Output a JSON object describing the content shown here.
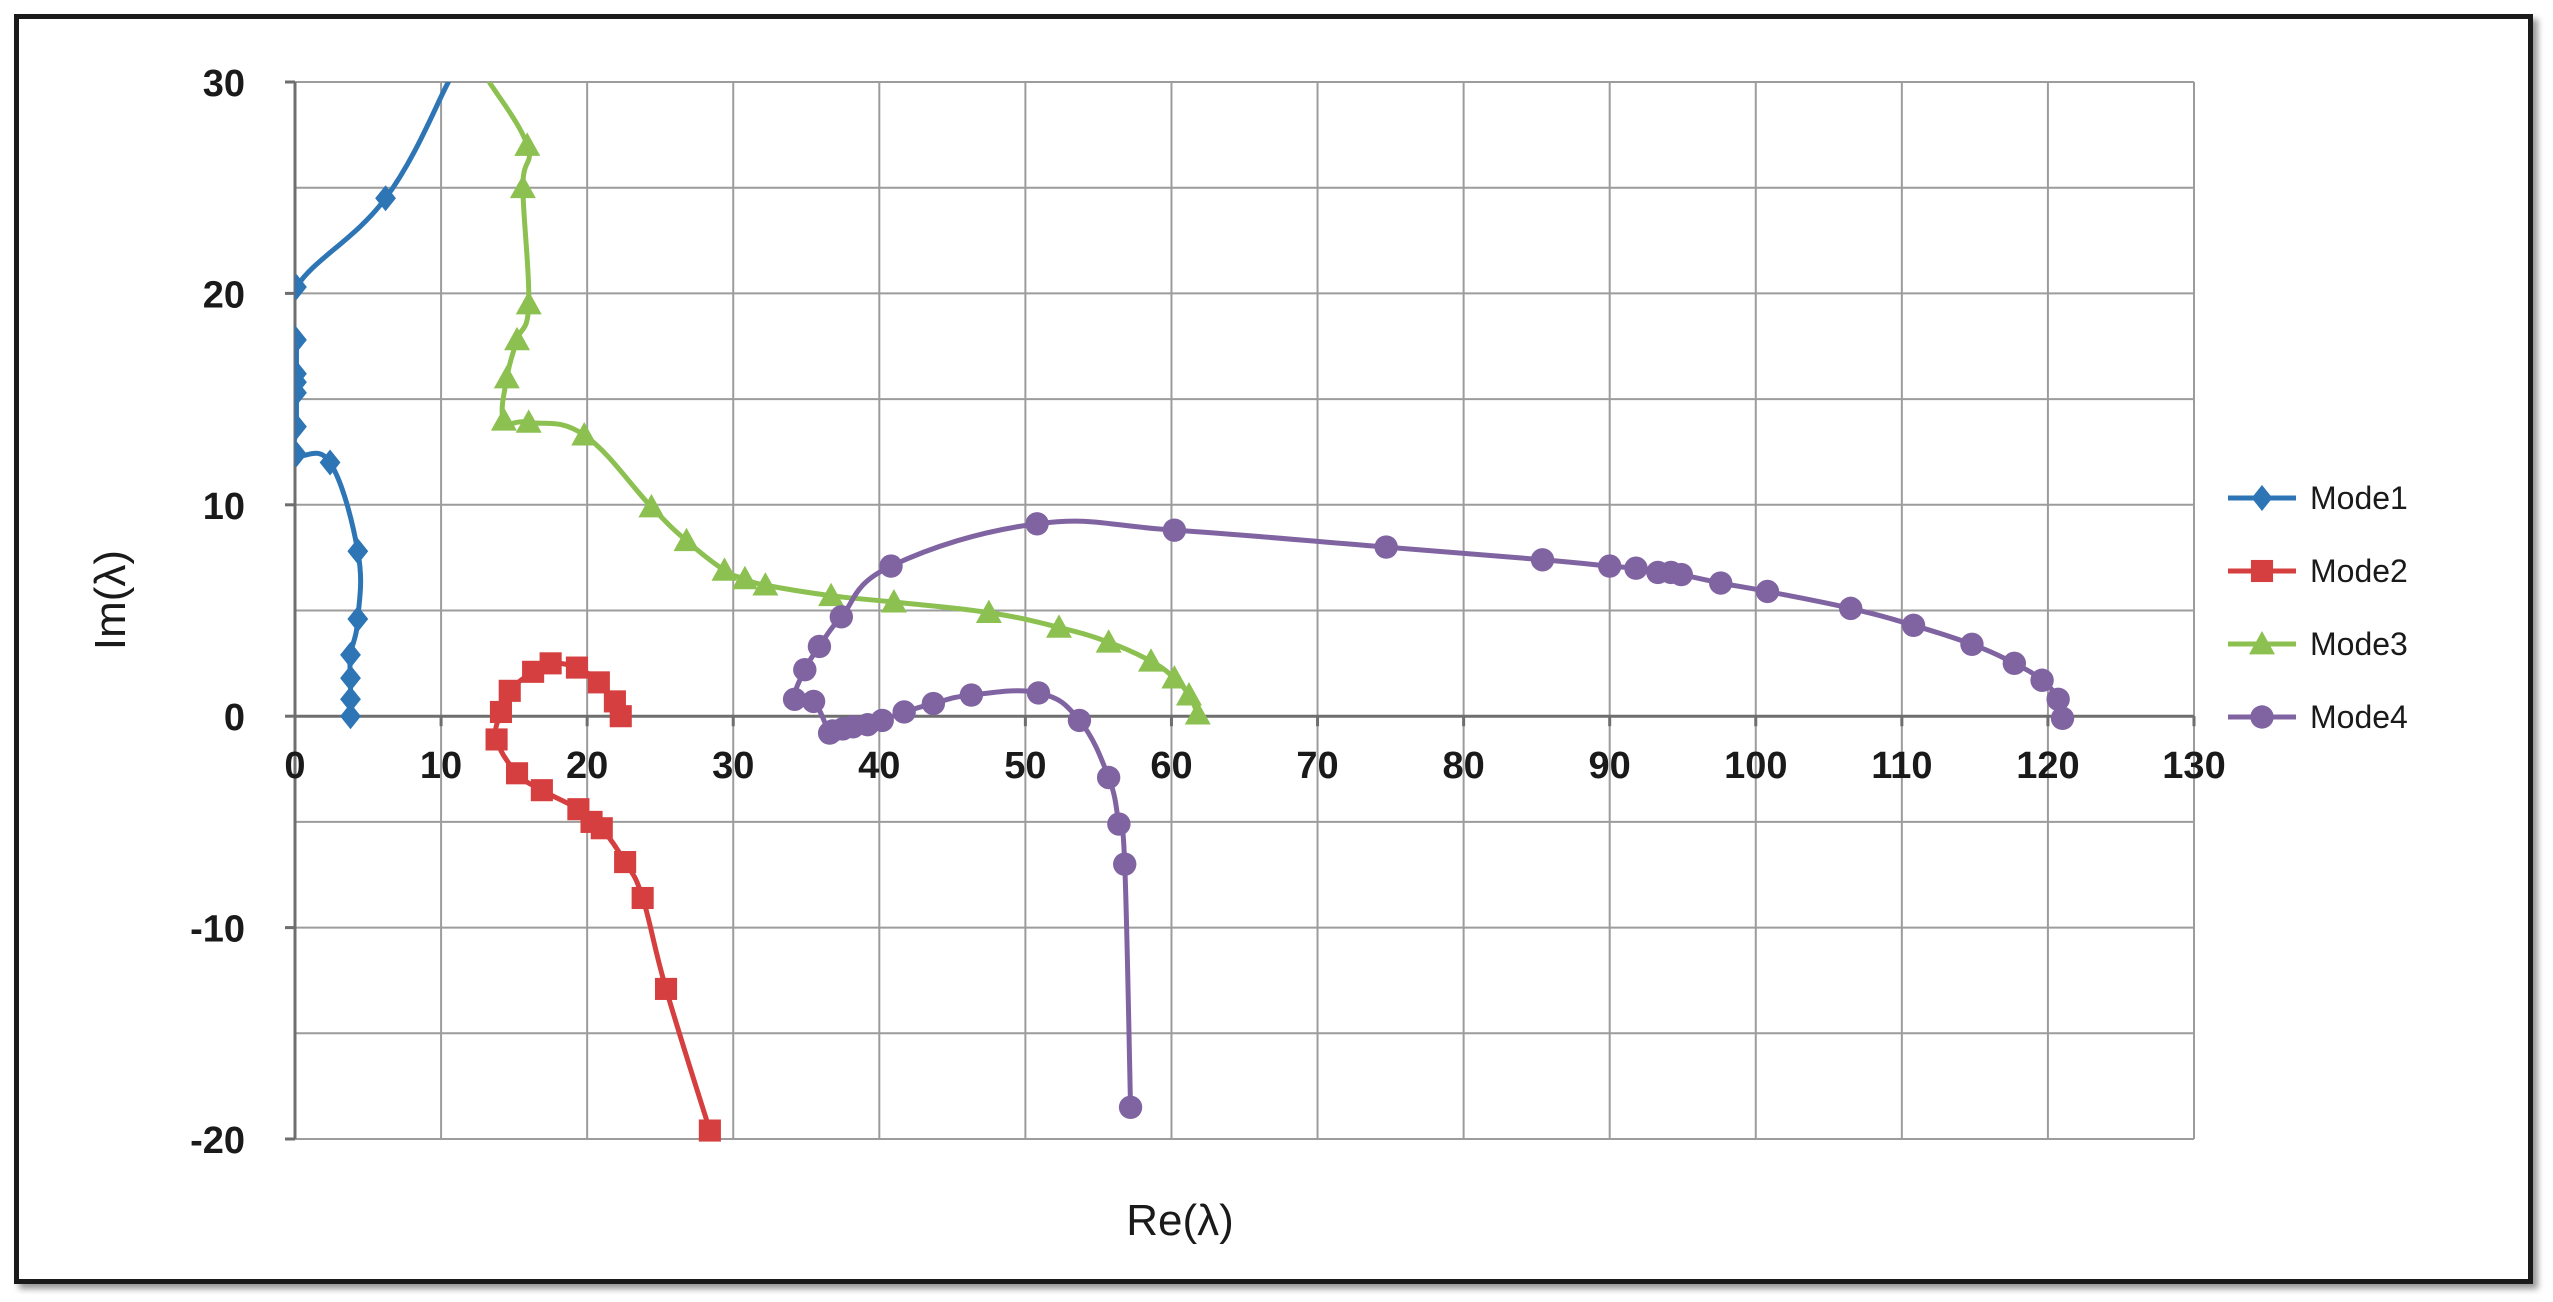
{
  "chart_data": {
    "type": "scatter",
    "xlabel": "Re(λ)",
    "ylabel": "Im(λ)",
    "xlim": [
      0,
      130
    ],
    "ylim": [
      -20,
      30
    ],
    "x_ticks": [
      "0",
      "10",
      "20",
      "30",
      "40",
      "50",
      "60",
      "70",
      "80",
      "90",
      "100",
      "110",
      "120",
      "130"
    ],
    "y_ticks": [
      "-20",
      "-10",
      "0",
      "10",
      "20",
      "30"
    ],
    "grid": true,
    "legend_position": "right",
    "series": [
      {
        "name": "Mode1",
        "color": "#2e75b6",
        "marker": "diamond",
        "points": [
          [
            10.5,
            30
          ],
          [
            6.2,
            24.5
          ],
          [
            0.1,
            20.3
          ],
          [
            0.1,
            17.8
          ],
          [
            0.1,
            16.2
          ],
          [
            0.1,
            15.8
          ],
          [
            0.1,
            15.3
          ],
          [
            0.1,
            13.7
          ],
          [
            0.1,
            12.4
          ],
          [
            2.4,
            12
          ],
          [
            4.3,
            7.8
          ],
          [
            4.3,
            4.6
          ],
          [
            3.8,
            2.9
          ],
          [
            3.8,
            1.8
          ],
          [
            3.8,
            0.8
          ],
          [
            3.8,
            0
          ]
        ]
      },
      {
        "name": "Mode2",
        "color": "#d63f3f",
        "marker": "square",
        "points": [
          [
            22.3,
            0
          ],
          [
            21.9,
            0.7
          ],
          [
            20.8,
            1.6
          ],
          [
            19.3,
            2.3
          ],
          [
            17.5,
            2.5
          ],
          [
            16.3,
            2.1
          ],
          [
            14.7,
            1.2
          ],
          [
            14.1,
            0.2
          ],
          [
            13.8,
            -1.1
          ],
          [
            15.2,
            -2.7
          ],
          [
            16.9,
            -3.5
          ],
          [
            19.4,
            -4.4
          ],
          [
            20.3,
            -5
          ],
          [
            21,
            -5.3
          ],
          [
            22.6,
            -6.9
          ],
          [
            23.8,
            -8.6
          ],
          [
            25.4,
            -12.9
          ],
          [
            28.4,
            -19.6
          ]
        ]
      },
      {
        "name": "Mode3",
        "color": "#8cc152",
        "marker": "triangle",
        "points": [
          [
            13.3,
            30
          ],
          [
            15.9,
            27
          ],
          [
            15.6,
            25
          ],
          [
            16,
            19.5
          ],
          [
            15.2,
            17.8
          ],
          [
            14.5,
            16
          ],
          [
            14.3,
            14
          ],
          [
            16,
            13.9
          ],
          [
            19.8,
            13.3
          ],
          [
            24.4,
            9.9
          ],
          [
            26.8,
            8.3
          ],
          [
            29.4,
            6.9
          ],
          [
            30.8,
            6.5
          ],
          [
            32.2,
            6.2
          ],
          [
            36.7,
            5.7
          ],
          [
            41,
            5.4
          ],
          [
            47.5,
            4.9
          ],
          [
            52.3,
            4.2
          ],
          [
            55.7,
            3.5
          ],
          [
            58.6,
            2.6
          ],
          [
            60.2,
            1.8
          ],
          [
            61.2,
            1
          ],
          [
            61.8,
            0.1
          ]
        ]
      },
      {
        "name": "Mode4",
        "color": "#8064a2",
        "marker": "circle",
        "points": [
          [
            57.2,
            -18.5
          ],
          [
            56.8,
            -7
          ],
          [
            56.4,
            -5.1
          ],
          [
            55.7,
            -2.9
          ],
          [
            53.7,
            -0.2
          ],
          [
            50.9,
            1.1
          ],
          [
            46.3,
            1
          ],
          [
            43.7,
            0.6
          ],
          [
            41.7,
            0.2
          ],
          [
            40.2,
            -0.2
          ],
          [
            39.2,
            -0.4
          ],
          [
            38.2,
            -0.5
          ],
          [
            37.5,
            -0.6
          ],
          [
            36.8,
            -0.7
          ],
          [
            36.6,
            -0.8
          ],
          [
            35.5,
            0.7
          ],
          [
            34.2,
            0.8
          ],
          [
            34.9,
            2.2
          ],
          [
            35.9,
            3.3
          ],
          [
            37.4,
            4.7
          ],
          [
            40.8,
            7.1
          ],
          [
            50.8,
            9.1
          ],
          [
            60.2,
            8.8
          ],
          [
            74.7,
            8
          ],
          [
            85.4,
            7.4
          ],
          [
            90,
            7.1
          ],
          [
            91.8,
            7
          ],
          [
            93.3,
            6.8
          ],
          [
            94.2,
            6.8
          ],
          [
            94.9,
            6.7
          ],
          [
            97.6,
            6.3
          ],
          [
            100.8,
            5.9
          ],
          [
            106.5,
            5.1
          ],
          [
            110.8,
            4.3
          ],
          [
            114.8,
            3.4
          ],
          [
            117.7,
            2.5
          ],
          [
            119.6,
            1.7
          ],
          [
            120.7,
            0.8
          ],
          [
            121,
            -0.1
          ]
        ]
      }
    ]
  }
}
